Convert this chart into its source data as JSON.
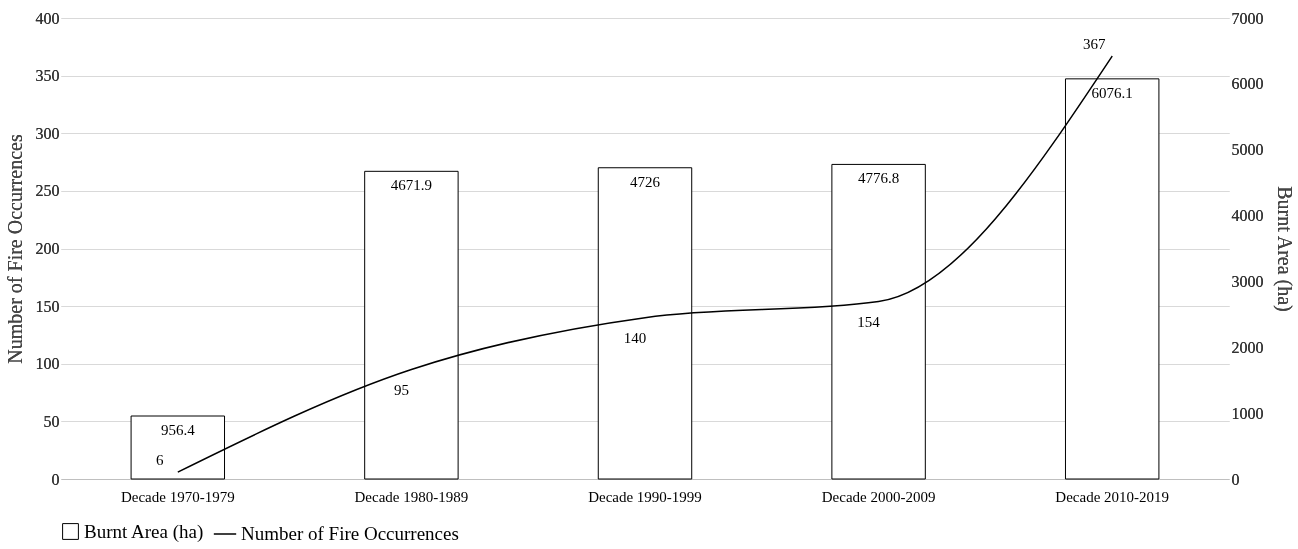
{
  "chart_data": {
    "type": "bar",
    "categories": [
      "Decade 1970-1979",
      "Decade 1980-1989",
      "Decade 1990-1999",
      "Decade 2000-2009",
      "Decade 2010-2019"
    ],
    "ylabel": "Number of Fire Occurrences",
    "y2label": "Burnt Area (ha)",
    "ylim": [
      0,
      400
    ],
    "yticks": [
      0,
      50,
      100,
      150,
      200,
      250,
      300,
      350,
      400
    ],
    "y2lim": [
      0,
      7000
    ],
    "y2ticks": [
      0,
      1000,
      2000,
      3000,
      4000,
      5000,
      6000,
      7000
    ],
    "series": [
      {
        "name": "Burnt Area (ha)",
        "axis": "y2",
        "color": "#ffffff",
        "values": [
          956.4,
          4671.9,
          4726,
          4776.8,
          6076.1
        ]
      },
      {
        "name": "Number of Fire Occurrences",
        "type": "line",
        "color": "#000000",
        "values": [
          6,
          95,
          140,
          154,
          367
        ]
      }
    ],
    "data_labels": true,
    "grid": "y",
    "legend": "bottom",
    "marker": "none",
    "line_style": "solid"
  }
}
